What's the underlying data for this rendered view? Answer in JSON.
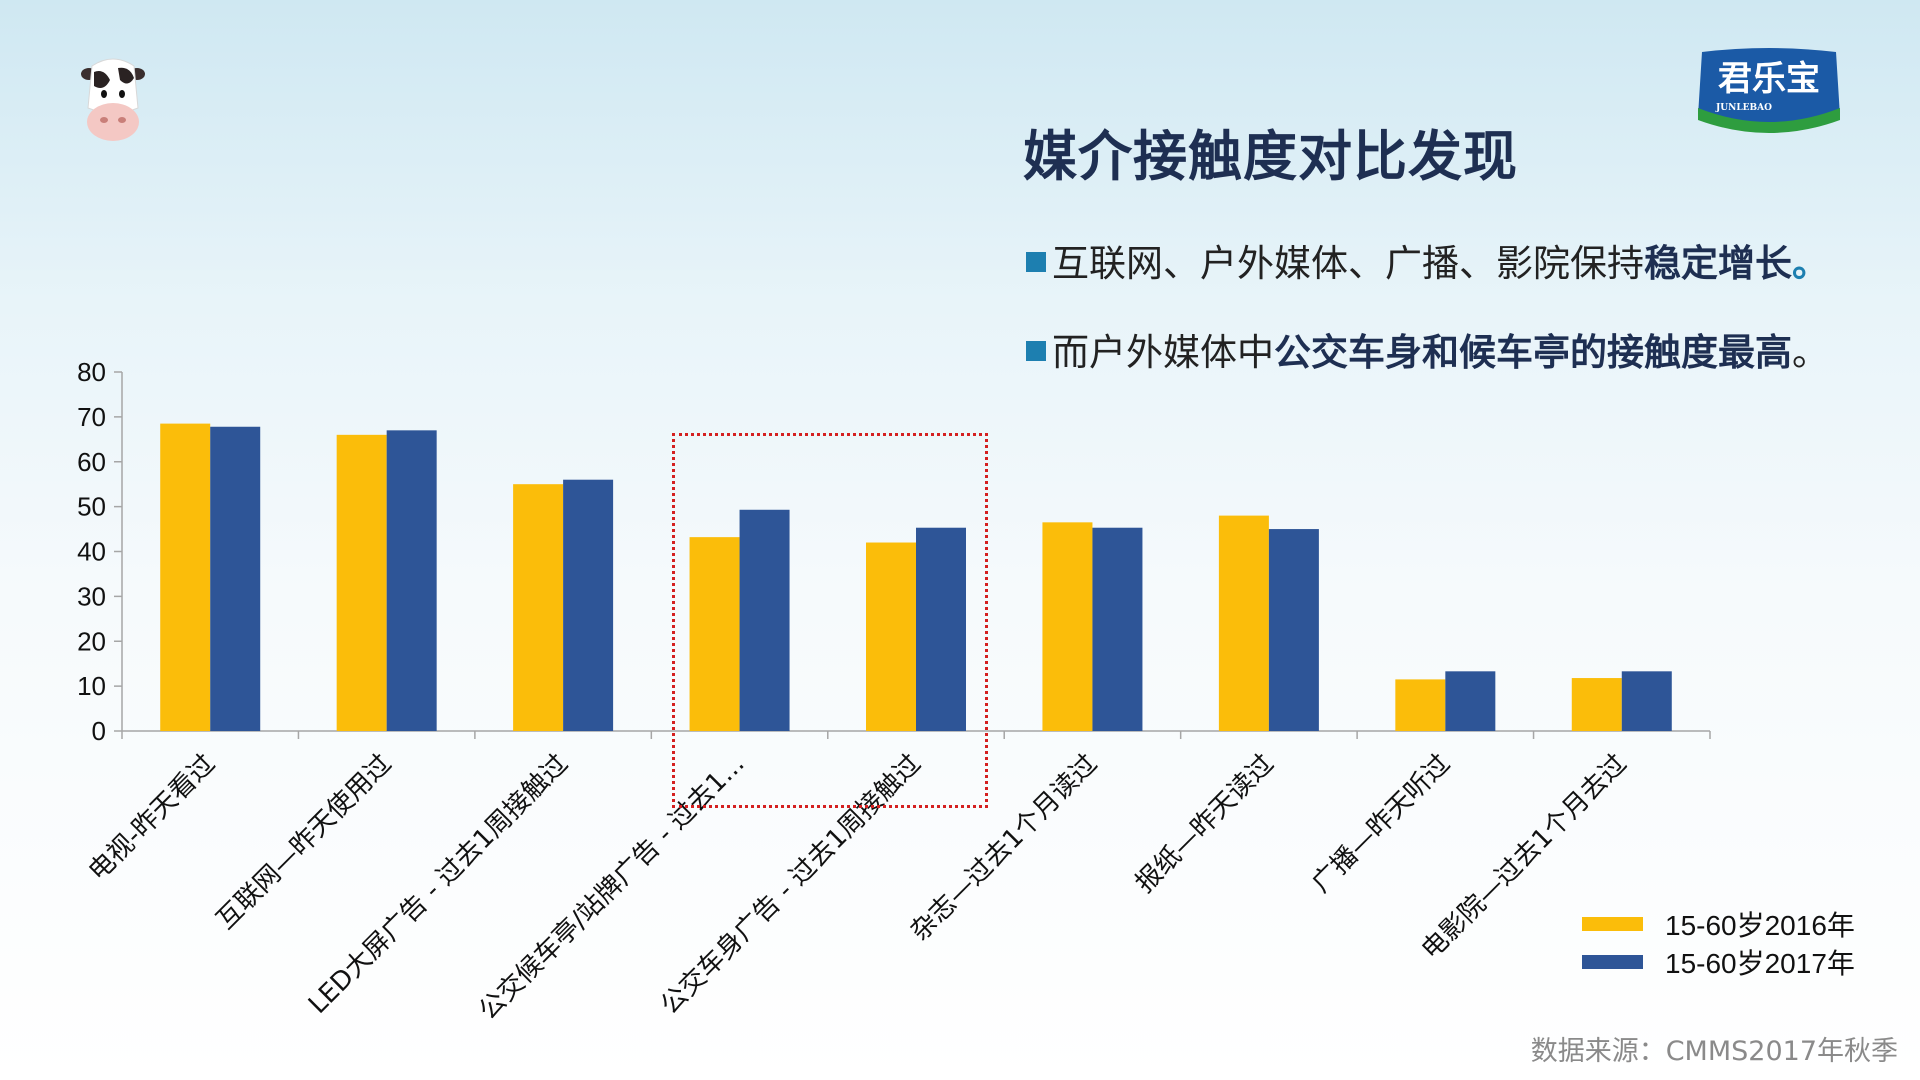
{
  "title": "媒介接触度对比发现",
  "bullets": [
    {
      "normal": "互联网、户外媒体、广播、影院保持",
      "bold": "稳定增长",
      "end": "。"
    },
    {
      "normal": "而户外媒体中",
      "bold": "公交车身和候车亭的接触度最高",
      "end": "。"
    }
  ],
  "logo": {
    "text": "君乐宝",
    "subtext": "JUNLEBAO"
  },
  "source": "数据来源：CMMS2017年秋季",
  "colors": {
    "series_2016": "#fbbd0a",
    "series_2017": "#2e5597",
    "accent": "#1d7fb0",
    "title": "#1e2f52"
  },
  "chart_data": {
    "type": "bar",
    "categories": [
      "电视-昨天看过",
      "互联网—昨天使用过",
      "LED大屏广告 - 过去1周接触过",
      "公交候车亭/站牌广告 - 过去1...",
      "公交车身广告 - 过去1周接触过",
      "杂志—过去1个月读过",
      "报纸—昨天读过",
      "广播—昨天听过",
      "电影院—过去1个月去过"
    ],
    "series": [
      {
        "name": "15-60岁2016年",
        "values": [
          68.5,
          66,
          55,
          43.2,
          42,
          46.5,
          48,
          11.5,
          11.8
        ]
      },
      {
        "name": "15-60岁2017年",
        "values": [
          67.8,
          67,
          56,
          49.3,
          45.3,
          45.3,
          45,
          13.3,
          13.3
        ]
      }
    ],
    "ylim": [
      0,
      80
    ],
    "yticks": [
      0,
      10,
      20,
      30,
      40,
      50,
      60,
      70,
      80
    ],
    "legend": "bottom-right",
    "grid": false
  }
}
